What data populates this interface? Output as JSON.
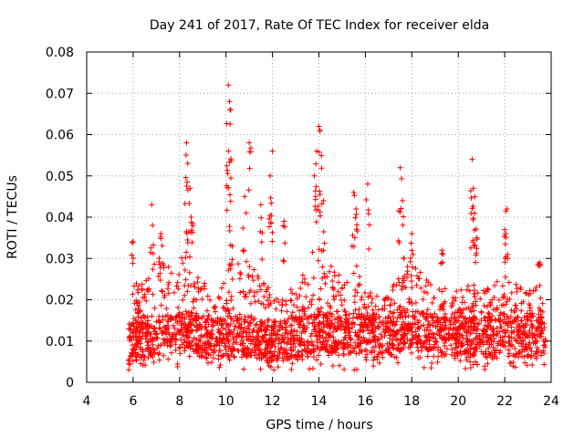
{
  "chart_data": {
    "type": "scatter",
    "marker": "plus",
    "color": "#ff0000",
    "title": "Day 241 of 2017, Rate Of TEC Index for receiver elda",
    "xlabel": "GPS time / hours",
    "ylabel": "ROTI / TECUs",
    "xlim": [
      4,
      24
    ],
    "ylim": [
      0,
      0.08
    ],
    "grid": true,
    "xticks": [
      "4",
      "6",
      "8",
      "10",
      "12",
      "14",
      "16",
      "18",
      "20",
      "22",
      "24"
    ],
    "yticks": [
      "0",
      "0.01",
      "0.02",
      "0.03",
      "0.04",
      "0.05",
      "0.06",
      "0.07",
      "0.08"
    ],
    "series": [
      {
        "name": "elda",
        "envelope": {
          "hours": [
            5.8,
            6.0,
            6.5,
            7.0,
            7.5,
            8.0,
            8.3,
            8.6,
            9.0,
            9.5,
            10.0,
            10.2,
            10.5,
            11.0,
            11.5,
            12.0,
            12.5,
            13.0,
            13.5,
            14.0,
            14.5,
            15.0,
            15.5,
            16.0,
            16.5,
            17.0,
            17.5,
            18.0,
            18.5,
            19.0,
            19.5,
            20.0,
            20.5,
            21.0,
            21.5,
            22.0,
            22.5,
            23.0,
            23.5,
            23.75
          ],
          "base": [
            0.009,
            0.01,
            0.011,
            0.011,
            0.011,
            0.012,
            0.012,
            0.012,
            0.011,
            0.01,
            0.011,
            0.011,
            0.011,
            0.011,
            0.01,
            0.01,
            0.01,
            0.011,
            0.011,
            0.012,
            0.012,
            0.011,
            0.012,
            0.011,
            0.011,
            0.011,
            0.012,
            0.013,
            0.012,
            0.011,
            0.011,
            0.011,
            0.011,
            0.011,
            0.011,
            0.012,
            0.011,
            0.011,
            0.011,
            0.011
          ],
          "upper": [
            0.015,
            0.024,
            0.024,
            0.03,
            0.028,
            0.03,
            0.032,
            0.03,
            0.025,
            0.02,
            0.026,
            0.03,
            0.03,
            0.03,
            0.025,
            0.022,
            0.022,
            0.026,
            0.026,
            0.03,
            0.03,
            0.025,
            0.03,
            0.024,
            0.022,
            0.024,
            0.026,
            0.03,
            0.027,
            0.022,
            0.024,
            0.022,
            0.025,
            0.022,
            0.024,
            0.026,
            0.024,
            0.022,
            0.025,
            0.018
          ]
        },
        "peaks": [
          {
            "x": 6.0,
            "y": 0.034
          },
          {
            "x": 6.8,
            "y": 0.043
          },
          {
            "x": 7.2,
            "y": 0.036
          },
          {
            "x": 8.3,
            "y": 0.058
          },
          {
            "x": 8.35,
            "y": 0.053
          },
          {
            "x": 8.45,
            "y": 0.047
          },
          {
            "x": 8.5,
            "y": 0.04
          },
          {
            "x": 10.1,
            "y": 0.072
          },
          {
            "x": 10.15,
            "y": 0.068
          },
          {
            "x": 10.2,
            "y": 0.066
          },
          {
            "x": 10.1,
            "y": 0.056
          },
          {
            "x": 11.0,
            "y": 0.058
          },
          {
            "x": 10.8,
            "y": 0.045
          },
          {
            "x": 11.5,
            "y": 0.043
          },
          {
            "x": 12.0,
            "y": 0.056
          },
          {
            "x": 11.9,
            "y": 0.05
          },
          {
            "x": 12.5,
            "y": 0.039
          },
          {
            "x": 13.8,
            "y": 0.05
          },
          {
            "x": 14.0,
            "y": 0.062
          },
          {
            "x": 14.05,
            "y": 0.061
          },
          {
            "x": 13.9,
            "y": 0.056
          },
          {
            "x": 14.2,
            "y": 0.044
          },
          {
            "x": 15.5,
            "y": 0.046
          },
          {
            "x": 15.6,
            "y": 0.042
          },
          {
            "x": 16.1,
            "y": 0.048
          },
          {
            "x": 17.5,
            "y": 0.052
          },
          {
            "x": 17.6,
            "y": 0.044
          },
          {
            "x": 18.0,
            "y": 0.036
          },
          {
            "x": 19.3,
            "y": 0.032
          },
          {
            "x": 20.6,
            "y": 0.054
          },
          {
            "x": 20.65,
            "y": 0.047
          },
          {
            "x": 20.7,
            "y": 0.041
          },
          {
            "x": 20.8,
            "y": 0.035
          },
          {
            "x": 22.1,
            "y": 0.042
          },
          {
            "x": 22.0,
            "y": 0.037
          },
          {
            "x": 23.5,
            "y": 0.029
          }
        ]
      }
    ]
  }
}
